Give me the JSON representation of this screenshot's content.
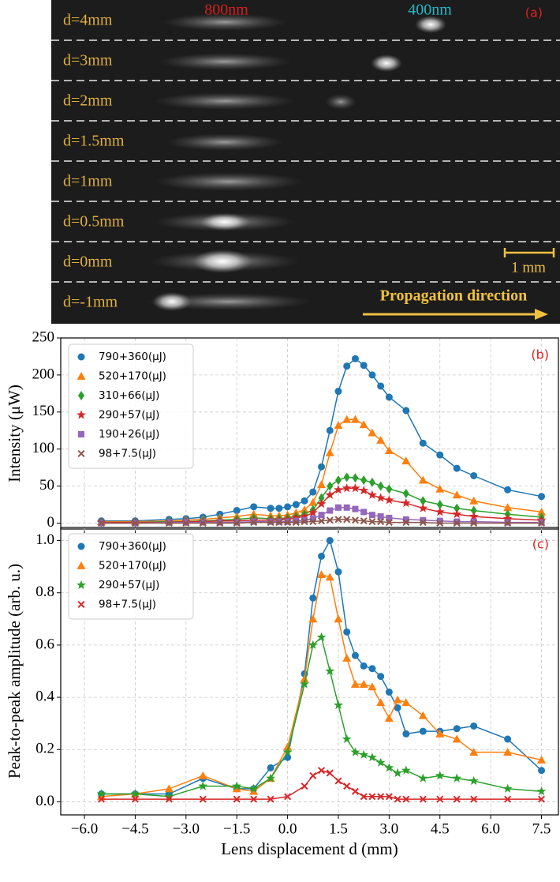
{
  "image_panel": {
    "panel_label": "(a)",
    "wavelength_labels": [
      "800nm",
      "400nm"
    ],
    "rows": [
      "d=4mm",
      "d=3mm",
      "d=2mm",
      "d=1.5mm",
      "d=1mm",
      "d=0.5mm",
      "d=0mm",
      "d=-1mm"
    ],
    "scale_bar": "1 mm",
    "arrow_label": "Propagation direction"
  },
  "chart_data": [
    {
      "type": "line",
      "panel_label": "(b)",
      "ylabel": "Intensity (μW)",
      "legend": "upper left",
      "grid": true,
      "show_xtick_labels": false,
      "xlim": [
        -6.7,
        8.0
      ],
      "ylim": [
        -8,
        250
      ],
      "xticks": [
        -6,
        -4.5,
        -3,
        -1.5,
        0,
        1.5,
        3,
        4.5,
        6,
        7.5
      ],
      "yticks": [
        0,
        50,
        100,
        150,
        200,
        250
      ],
      "x": [
        -5.5,
        -4.5,
        -3.5,
        -3,
        -2.5,
        -2,
        -1.5,
        -1,
        -0.5,
        -0.25,
        0,
        0.25,
        0.5,
        0.75,
        1,
        1.25,
        1.5,
        1.75,
        2,
        2.25,
        2.5,
        2.75,
        3,
        3.5,
        4,
        4.5,
        5,
        5.5,
        6.5,
        7.5
      ],
      "series": [
        {
          "name": "790+360(μJ)",
          "color": "#1f77b4",
          "marker": "circle",
          "values": [
            3,
            3,
            5,
            6,
            8,
            12,
            17,
            22,
            20,
            20,
            22,
            25,
            30,
            42,
            76,
            125,
            178,
            212,
            222,
            213,
            200,
            185,
            170,
            152,
            108,
            92,
            74,
            64,
            45,
            36
          ]
        },
        {
          "name": "520+170(μJ)",
          "color": "#ff7f0e",
          "marker": "triangle",
          "values": [
            2,
            2,
            3,
            4,
            5,
            7,
            9,
            12,
            10,
            10,
            11,
            14,
            18,
            28,
            52,
            95,
            132,
            140,
            140,
            133,
            122,
            112,
            98,
            84,
            58,
            46,
            38,
            30,
            21,
            15
          ]
        },
        {
          "name": "310+66(μJ)",
          "color": "#2ca02c",
          "marker": "diamond",
          "values": [
            1,
            1,
            2,
            2,
            3,
            4,
            5,
            7,
            6,
            6,
            7,
            9,
            12,
            18,
            34,
            50,
            58,
            62,
            61,
            58,
            55,
            50,
            46,
            40,
            30,
            25,
            20,
            17,
            12,
            8
          ]
        },
        {
          "name": "290+57(μJ)",
          "color": "#d62728",
          "marker": "star",
          "values": [
            1,
            1,
            1,
            2,
            2,
            3,
            3,
            4,
            4,
            4,
            5,
            7,
            9,
            14,
            26,
            38,
            45,
            47,
            47,
            44,
            38,
            34,
            31,
            27,
            20,
            15,
            12,
            9,
            6,
            4
          ]
        },
        {
          "name": "190+26(μJ)",
          "color": "#9467bd",
          "marker": "square",
          "values": [
            0,
            0,
            1,
            1,
            1,
            1,
            1,
            2,
            2,
            2,
            2,
            3,
            4,
            6,
            11,
            17,
            21,
            21,
            19,
            15,
            11,
            9,
            7,
            5,
            4,
            3,
            2,
            2,
            1,
            1
          ]
        },
        {
          "name": "98+7.5(μJ)",
          "color": "#8c564b",
          "marker": "x",
          "values": [
            0,
            0,
            0,
            0,
            0,
            0,
            0,
            1,
            1,
            1,
            1,
            1,
            2,
            2,
            3,
            4,
            5,
            5,
            4,
            3,
            2,
            2,
            1,
            1,
            1,
            0,
            0,
            0,
            0,
            0
          ]
        }
      ]
    },
    {
      "type": "line",
      "panel_label": "(c)",
      "ylabel": "Peak-to-peak amplitude (arb. u.)",
      "xlabel": "Lens displacement d (mm)",
      "legend": "upper left",
      "grid": true,
      "show_xtick_labels": true,
      "xlim": [
        -6.7,
        8.0
      ],
      "ylim": [
        -0.05,
        1.05
      ],
      "xticks": [
        {
          "value": -6,
          "label": "−6.0"
        },
        {
          "value": -4.5,
          "label": "−4.5"
        },
        {
          "value": -3,
          "label": "−3.0"
        },
        {
          "value": -1.5,
          "label": "−1.5"
        },
        {
          "value": 0,
          "label": "0.0"
        },
        1.5,
        {
          "value": 3,
          "label": "3.0"
        },
        4.5,
        {
          "value": 6,
          "label": "6.0"
        },
        7.5
      ],
      "yticks": [
        {
          "value": 0,
          "label": "0.0"
        },
        0.2,
        0.4,
        0.6,
        0.8,
        {
          "value": 1,
          "label": "1.0"
        }
      ],
      "x": [
        -5.5,
        -4.5,
        -3.5,
        -2.5,
        -1.5,
        -1,
        -0.5,
        0,
        0.5,
        0.75,
        1,
        1.25,
        1.5,
        1.75,
        2,
        2.25,
        2.5,
        2.75,
        3,
        3.25,
        3.5,
        4,
        4.5,
        5,
        5.5,
        6.5,
        7.5
      ],
      "series": [
        {
          "name": "790+360(μJ)",
          "color": "#1f77b4",
          "marker": "circle",
          "values": [
            0.03,
            0.03,
            0.03,
            0.09,
            0.05,
            0.05,
            0.13,
            0.17,
            0.49,
            0.78,
            0.94,
            1.0,
            0.88,
            0.65,
            0.56,
            0.52,
            0.51,
            0.48,
            0.42,
            0.36,
            0.26,
            0.27,
            0.27,
            0.28,
            0.29,
            0.24,
            0.12
          ]
        },
        {
          "name": "520+170(μJ)",
          "color": "#ff7f0e",
          "marker": "triangle",
          "values": [
            0.02,
            0.03,
            0.05,
            0.1,
            0.05,
            0.04,
            0.09,
            0.21,
            0.47,
            0.7,
            0.87,
            0.86,
            0.7,
            0.55,
            0.45,
            0.45,
            0.44,
            0.38,
            0.32,
            0.39,
            0.38,
            0.33,
            0.26,
            0.24,
            0.19,
            0.19,
            0.16
          ]
        },
        {
          "name": "290+57(μJ)",
          "color": "#2ca02c",
          "marker": "star",
          "values": [
            0.03,
            0.03,
            0.02,
            0.06,
            0.06,
            0.05,
            0.09,
            0.19,
            0.45,
            0.6,
            0.63,
            0.5,
            0.37,
            0.24,
            0.19,
            0.18,
            0.17,
            0.15,
            0.13,
            0.11,
            0.12,
            0.09,
            0.1,
            0.09,
            0.08,
            0.05,
            0.04
          ]
        },
        {
          "name": "98+7.5(μJ)",
          "color": "#d62728",
          "marker": "x",
          "values": [
            0.01,
            0.01,
            0.01,
            0.01,
            0.01,
            0.01,
            0.01,
            0.02,
            0.06,
            0.1,
            0.12,
            0.11,
            0.08,
            0.06,
            0.04,
            0.02,
            0.02,
            0.02,
            0.02,
            0.01,
            0.01,
            0.01,
            0.01,
            0.01,
            0.01,
            0.01,
            0.01
          ]
        }
      ]
    }
  ]
}
